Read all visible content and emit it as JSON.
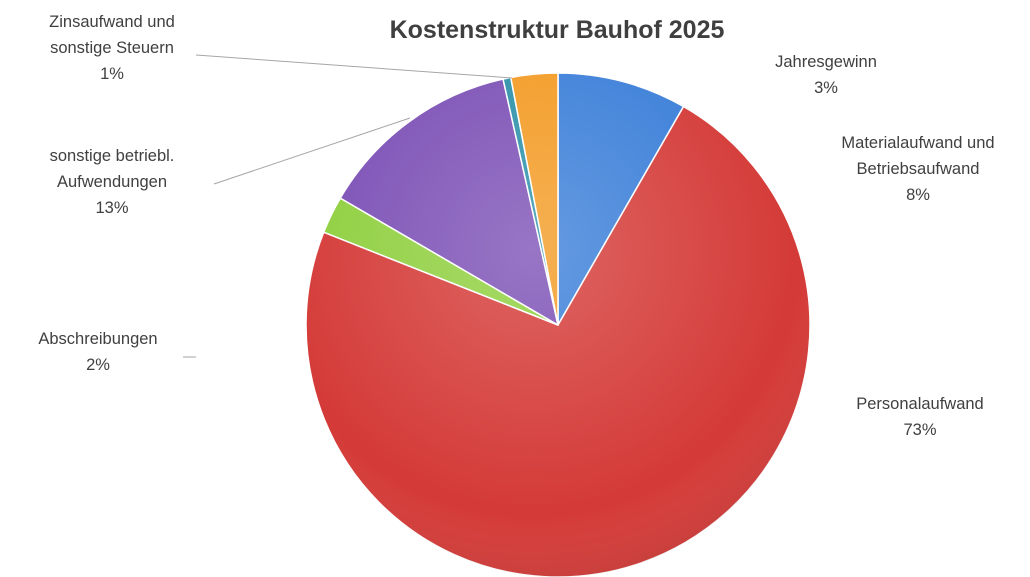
{
  "chart_data": {
    "type": "pie",
    "title": "Kostenstruktur Bauhof 2025",
    "slices": [
      {
        "lines": [
          "Materialaufwand und",
          "Betriebsaufwand"
        ],
        "pct_label": "8%",
        "value": 8.3,
        "color": "#3a7ed8"
      },
      {
        "lines": [
          "Personalaufwand"
        ],
        "pct_label": "73%",
        "value": 72.7,
        "color": "#d43a37"
      },
      {
        "lines": [
          "Abschreibungen"
        ],
        "pct_label": "2%",
        "value": 2.4,
        "color": "#8fcf3e"
      },
      {
        "lines": [
          "sonstige betriebl.",
          "Aufwendungen"
        ],
        "pct_label": "13%",
        "value": 13.1,
        "color": "#7b4fb5"
      },
      {
        "lines": [
          "Zinsaufwand und",
          "sonstige Steuern"
        ],
        "pct_label": "1%",
        "value": 0.5,
        "color": "#2a8fa8"
      },
      {
        "lines": [
          "Jahresgewinn"
        ],
        "pct_label": "3%",
        "value": 3.0,
        "color": "#f39a22"
      }
    ],
    "legend": "none",
    "data_labels": "outside with leader lines"
  }
}
